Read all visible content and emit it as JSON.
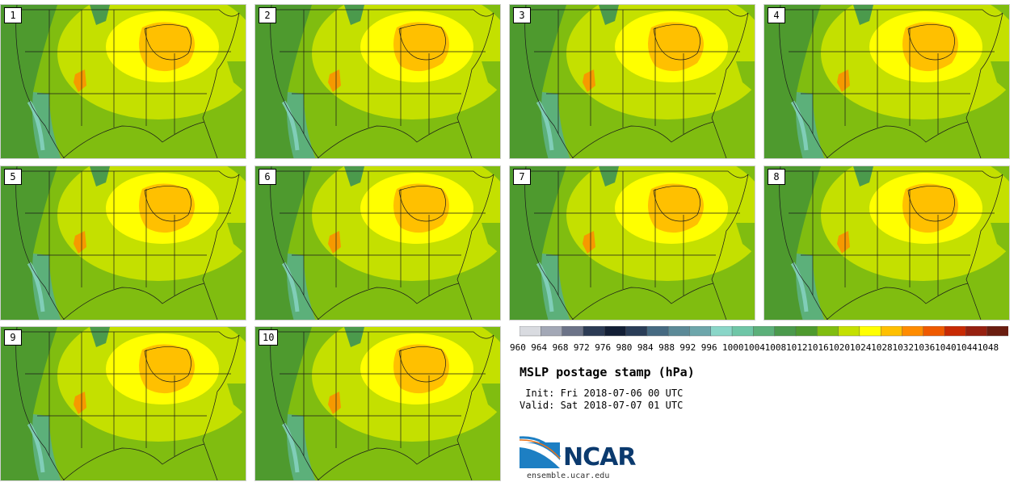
{
  "panels": [
    {
      "label": "1"
    },
    {
      "label": "2"
    },
    {
      "label": "3"
    },
    {
      "label": "4"
    },
    {
      "label": "5"
    },
    {
      "label": "6"
    },
    {
      "label": "7"
    },
    {
      "label": "8"
    },
    {
      "label": "9"
    },
    {
      "label": "10"
    }
  ],
  "colorbar": {
    "levels": [
      "960",
      "964",
      "968",
      "972",
      "976",
      "980",
      "984",
      "988",
      "992",
      "996",
      "1000",
      "1004",
      "1008",
      "1012",
      "1016",
      "1020",
      "1024",
      "1028",
      "1032",
      "1036",
      "1040",
      "1044",
      "1048"
    ],
    "colors": [
      "#d9dbe0",
      "#a3a8b6",
      "#6c7388",
      "#2c3b55",
      "#131f36",
      "#2a3d58",
      "#466a82",
      "#5c8a98",
      "#6da6ab",
      "#8ad6c8",
      "#6fc6a7",
      "#5cb07a",
      "#4b9a4c",
      "#4e9a2e",
      "#80bd10",
      "#c4e000",
      "#ffff00",
      "#ffc000",
      "#ff8c00",
      "#ef5a00",
      "#c82a04",
      "#962010",
      "#6a1d10"
    ]
  },
  "title": "MSLP postage stamp (hPa)",
  "init_text": " Init: Fri 2018-07-06 00 UTC",
  "valid_text": "Valid: Sat 2018-07-07 01 UTC",
  "logo_text": "NCAR",
  "url_text": "ensemble.ucar.edu"
}
